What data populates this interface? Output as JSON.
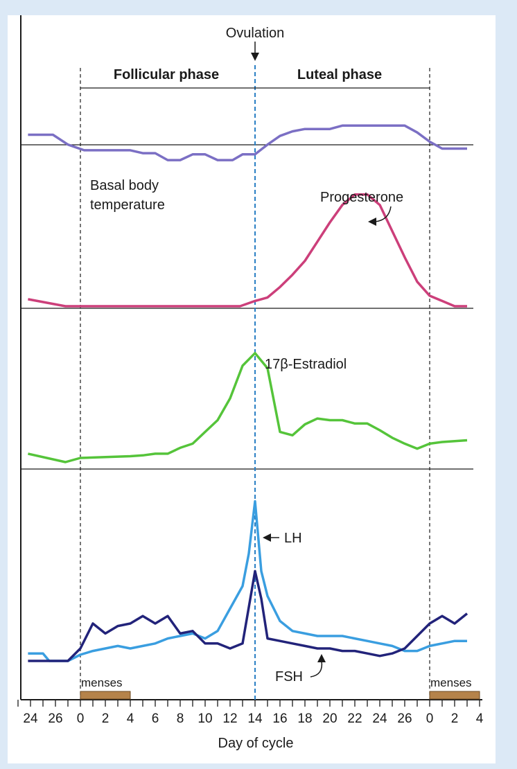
{
  "labels": {
    "ovulation": "Ovulation",
    "follicular": "Follicular phase",
    "luteal": "Luteal phase",
    "bbt_line1": "Basal body",
    "bbt_line2": "temperature",
    "progesterone": "Progesterone",
    "estradiol": "17β-Estradiol",
    "lh": "LH",
    "fsh": "FSH",
    "menses_left": "menses",
    "menses_right": "menses",
    "xlabel": "Day of cycle"
  },
  "colors": {
    "bbt": "#7b6fc4",
    "progesterone": "#cc3f7a",
    "estradiol": "#55c43a",
    "lh": "#3a9ee0",
    "fsh": "#22237a",
    "menses": "#b5834a",
    "ovulation_line": "#2a7fc4"
  },
  "chart_data": {
    "type": "line",
    "xlabel": "Day of cycle",
    "x_tick_labels": [
      "24",
      "26",
      "0",
      "2",
      "4",
      "6",
      "8",
      "10",
      "12",
      "14",
      "16",
      "18",
      "20",
      "22",
      "24",
      "26",
      "0",
      "2",
      "4"
    ],
    "x_range": [
      -5,
      32
    ],
    "ovulation_day": 14,
    "cycle_start_day": 0,
    "cycle_end_day": 28,
    "menses": [
      [
        0,
        4
      ],
      [
        28,
        32
      ]
    ],
    "series": [
      {
        "name": "Basal body temperature",
        "color_key": "bbt",
        "x": [
          -4.2,
          -2.2,
          -1,
          0.3,
          4,
          5,
          6,
          7,
          8,
          9,
          10,
          11,
          12.2,
          13,
          14,
          15,
          16,
          17,
          18,
          19,
          20,
          21,
          22,
          23,
          24,
          25,
          26,
          27,
          28,
          29,
          30,
          31
        ],
        "y": [
          0.62,
          0.62,
          0.45,
          0.35,
          0.35,
          0.3,
          0.3,
          0.18,
          0.18,
          0.28,
          0.28,
          0.18,
          0.18,
          0.28,
          0.28,
          0.45,
          0.6,
          0.68,
          0.72,
          0.72,
          0.72,
          0.78,
          0.78,
          0.78,
          0.78,
          0.78,
          0.78,
          0.66,
          0.5,
          0.38,
          0.38,
          0.38
        ]
      },
      {
        "name": "Progesterone",
        "color_key": "progesterone",
        "x": [
          -4.2,
          -1.2,
          0,
          2,
          4,
          6,
          8,
          10,
          12,
          12.8,
          14,
          15,
          16,
          17,
          18,
          19,
          20,
          21,
          22,
          23,
          24,
          25,
          26,
          27,
          28,
          29,
          30,
          31
        ],
        "y": [
          0.08,
          0.0,
          0.0,
          0.0,
          0.0,
          0.0,
          0.0,
          0.0,
          0.0,
          0.0,
          0.06,
          0.1,
          0.22,
          0.36,
          0.52,
          0.74,
          0.96,
          1.16,
          1.28,
          1.28,
          1.16,
          0.86,
          0.56,
          0.28,
          0.12,
          0.06,
          0.0,
          0.0
        ]
      },
      {
        "name": "17β-Estradiol",
        "color_key": "estradiol",
        "x": [
          -4.2,
          -1.2,
          0,
          2,
          4,
          5,
          6,
          7,
          8,
          9,
          10,
          11,
          12,
          13,
          14,
          15,
          16,
          17,
          18,
          19,
          20,
          21,
          22,
          23,
          24,
          25,
          26,
          27,
          28,
          29,
          30,
          31
        ],
        "y": [
          0.1,
          0.0,
          0.05,
          0.06,
          0.07,
          0.08,
          0.1,
          0.1,
          0.17,
          0.22,
          0.36,
          0.5,
          0.76,
          1.15,
          1.3,
          1.12,
          0.36,
          0.32,
          0.45,
          0.52,
          0.5,
          0.5,
          0.46,
          0.46,
          0.38,
          0.29,
          0.22,
          0.16,
          0.22,
          0.24,
          0.25,
          0.26
        ]
      },
      {
        "name": "LH",
        "color_key": "lh",
        "x": [
          -4.2,
          -3,
          -2.5,
          -1,
          0,
          1,
          2,
          3,
          4,
          5,
          6,
          7,
          8,
          9,
          10,
          11,
          12,
          13,
          13.5,
          14,
          14.5,
          15,
          16,
          17,
          18,
          19,
          20,
          21,
          22,
          23,
          24,
          25,
          26,
          27,
          28,
          29,
          30,
          31
        ],
        "y": [
          0.06,
          0.06,
          0.0,
          0.0,
          0.05,
          0.08,
          0.1,
          0.12,
          0.1,
          0.12,
          0.14,
          0.18,
          0.2,
          0.22,
          0.18,
          0.24,
          0.42,
          0.6,
          0.86,
          1.28,
          0.72,
          0.52,
          0.32,
          0.24,
          0.22,
          0.2,
          0.2,
          0.2,
          0.18,
          0.16,
          0.14,
          0.12,
          0.08,
          0.08,
          0.12,
          0.14,
          0.16,
          0.16
        ]
      },
      {
        "name": "FSH",
        "color_key": "fsh",
        "x": [
          -4.2,
          -3,
          -2,
          -1,
          0,
          1,
          2,
          3,
          4,
          5,
          6,
          7,
          8,
          9,
          10,
          11,
          12,
          13,
          14,
          14.5,
          15,
          16,
          17,
          18,
          19,
          20,
          21,
          22,
          23,
          24,
          25,
          26,
          27,
          28,
          29,
          30,
          31
        ],
        "y": [
          0.0,
          0.0,
          0.0,
          0.0,
          0.1,
          0.3,
          0.22,
          0.28,
          0.3,
          0.36,
          0.3,
          0.36,
          0.22,
          0.24,
          0.14,
          0.14,
          0.1,
          0.14,
          0.72,
          0.5,
          0.18,
          0.16,
          0.14,
          0.12,
          0.1,
          0.1,
          0.08,
          0.08,
          0.06,
          0.04,
          0.06,
          0.1,
          0.2,
          0.3,
          0.36,
          0.3,
          0.38
        ]
      }
    ]
  }
}
